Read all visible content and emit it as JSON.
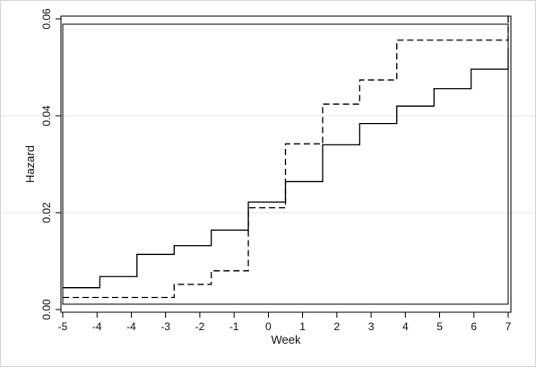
{
  "chart_data": {
    "type": "line",
    "title": "",
    "xlabel": "Week",
    "ylabel": "Hazard",
    "xlim": [
      -5,
      7
    ],
    "ylim": [
      0,
      0.06
    ],
    "x_tick_labels": [
      "-5",
      "-4",
      "-4",
      "-3",
      "-2",
      "-1",
      "0",
      "1",
      "2",
      "3",
      "4",
      "5",
      "6",
      "7"
    ],
    "y_tick_labels": [
      "0.00",
      "0.02",
      "0.04",
      "0.06"
    ],
    "y_ticks": [
      0,
      0.02,
      0.04,
      0.06
    ],
    "grid": "horizontal",
    "legend": "none",
    "step": true,
    "series": [
      {
        "style": "solid",
        "color": "#000000",
        "x": [
          -5,
          -4,
          -3,
          -2,
          -1,
          0,
          1,
          2,
          3,
          4,
          5,
          6,
          7
        ],
        "values": [
          0.0045,
          0.0068,
          0.0114,
          0.0132,
          0.0164,
          0.0222,
          0.0264,
          0.034,
          0.0384,
          0.042,
          0.0456,
          0.0496,
          0.054
        ]
      },
      {
        "style": "dashed",
        "color": "#000000",
        "x": [
          -5,
          -4,
          -3,
          -2,
          -1,
          0,
          1,
          2,
          3,
          4,
          5,
          6,
          7
        ],
        "values": [
          0.0025,
          0.0025,
          0.0025,
          0.0052,
          0.008,
          0.021,
          0.0342,
          0.0424,
          0.0474,
          0.0556,
          0.0556,
          0.0556,
          0.061
        ]
      }
    ]
  }
}
